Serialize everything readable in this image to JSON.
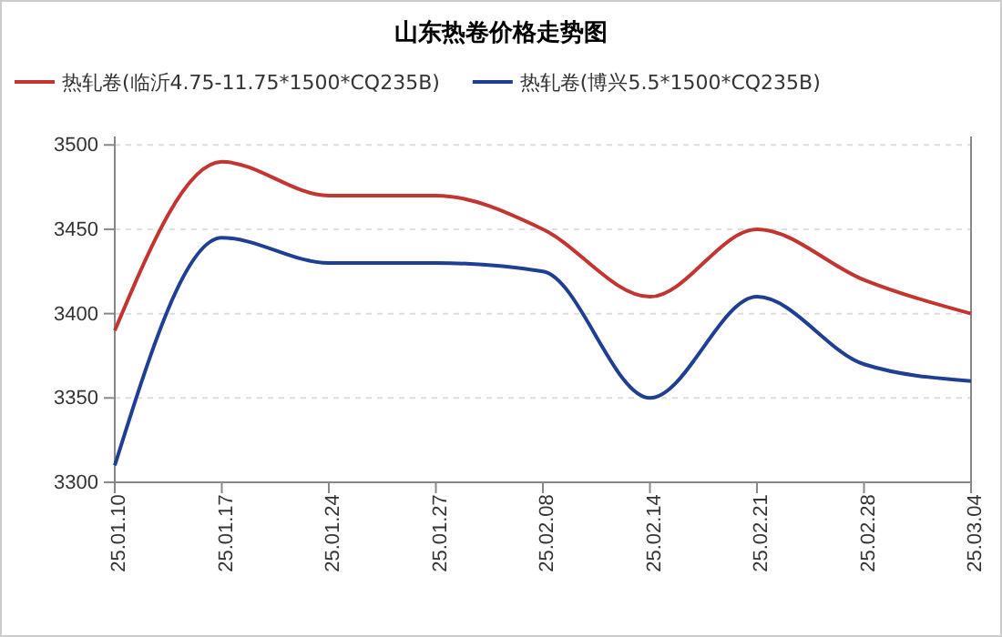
{
  "chart_data": {
    "type": "line",
    "title": "山东热卷价格走势图",
    "categories": [
      "25.01.10",
      "25.01.17",
      "25.01.24",
      "25.01.27",
      "25.02.08",
      "25.02.14",
      "25.02.21",
      "25.02.28",
      "25.03.04"
    ],
    "series": [
      {
        "name": "热轧卷(临沂4.75-11.75*1500*CQ235B)",
        "color": "#c23531",
        "values": [
          3390,
          3490,
          3470,
          3470,
          3450,
          3410,
          3450,
          3420,
          3400
        ]
      },
      {
        "name": "热轧卷(博兴5.5*1500*CQ235B)",
        "color": "#1f3f94",
        "values": [
          3310,
          3445,
          3430,
          3430,
          3425,
          3350,
          3410,
          3370,
          3360
        ]
      }
    ],
    "ylim": [
      3300,
      3505
    ],
    "yticks": [
      3300,
      3350,
      3400,
      3450,
      3500
    ],
    "grid": "y",
    "legend": "top",
    "marker": "none",
    "line_style": "solid"
  }
}
